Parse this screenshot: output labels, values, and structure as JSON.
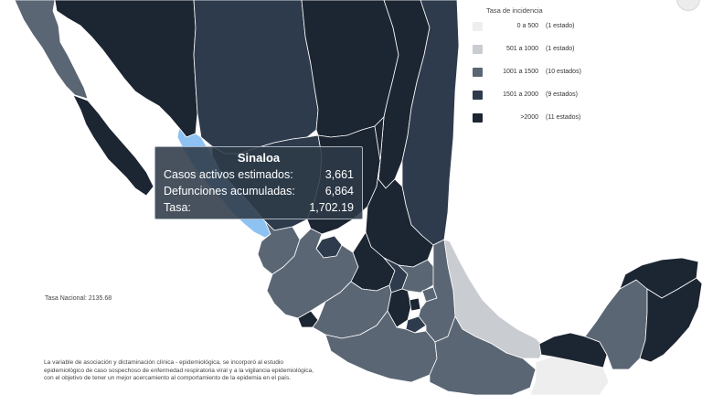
{
  "legend": {
    "title": "Tasa de incidencia",
    "items": [
      {
        "range": "0 a 500",
        "count": "(1 estado)",
        "color": "#eeeeee"
      },
      {
        "range": "501 a 1000",
        "count": "(1 estado)",
        "color": "#c9ccd1"
      },
      {
        "range": "1001 a 1500",
        "count": "(10 estados)",
        "color": "#5b6675"
      },
      {
        "range": "1501 a 2000",
        "count": "(9 estados)",
        "color": "#2e3b4c"
      },
      {
        "range": ">2000",
        "count": "(11 estados)",
        "color": "#1c2532"
      }
    ]
  },
  "highlight_color": "#8ec2f2",
  "tooltip": {
    "state": "Sinaloa",
    "rows": [
      {
        "label": "Casos activos estimados:",
        "value": "3,661"
      },
      {
        "label": "Defunciones acumuladas:",
        "value": "6,864"
      },
      {
        "label": "Tasa:",
        "value": "1,702.19"
      }
    ]
  },
  "national_rate": "Tasa Nacional: 2135.68",
  "footnote": [
    "La variable de asociación y dictaminación clínica - epidemiológica, se incorporó al estudio",
    "epidemiológico de caso sospechoso de enfermedad respiratoria viral y a la vigilancia epidemiológica,",
    "con el objetivo de tener un mejor acercamiento al comportamiento de la epidemia en el país."
  ]
}
